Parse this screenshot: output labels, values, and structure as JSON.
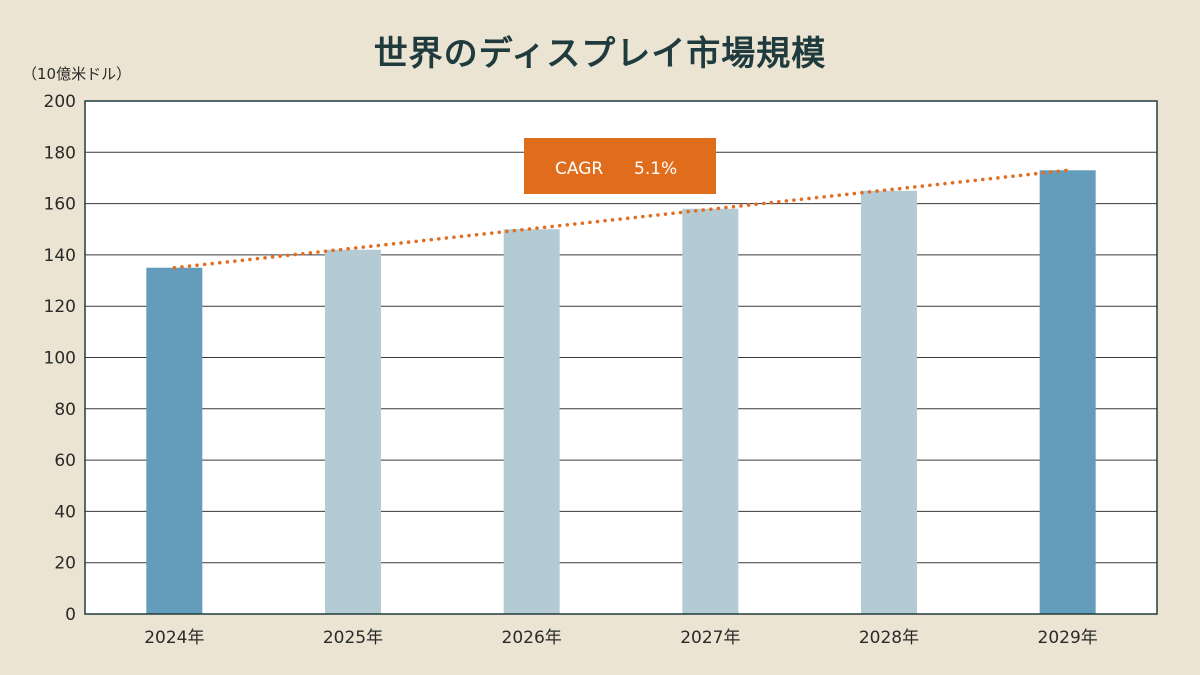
{
  "chart_data": {
    "type": "bar",
    "title": "世界のディスプレイ市場規模",
    "unit_label": "（10億米ドル）",
    "categories": [
      "2024年",
      "2025年",
      "2026年",
      "2027年",
      "2028年",
      "2029年"
    ],
    "values": [
      135,
      142,
      150,
      158,
      165,
      173
    ],
    "ylim": [
      0,
      200
    ],
    "yticks": [
      0,
      20,
      40,
      60,
      80,
      100,
      120,
      140,
      160,
      180,
      200
    ],
    "grid": true,
    "highlighted_categories": [
      "2024年",
      "2029年"
    ],
    "trendline": {
      "style": "dotted",
      "from": 135,
      "to": 173
    },
    "annotation": {
      "label": "CAGR",
      "value": "5.1%"
    },
    "colors": {
      "bar_highlight": "#649cbc",
      "bar_normal": "#b4cbd4",
      "trendline": "#e06d22",
      "annotation_bg": "#e06d1c",
      "plot_bg": "#ffffff",
      "axis": "#1f3b3d"
    }
  }
}
